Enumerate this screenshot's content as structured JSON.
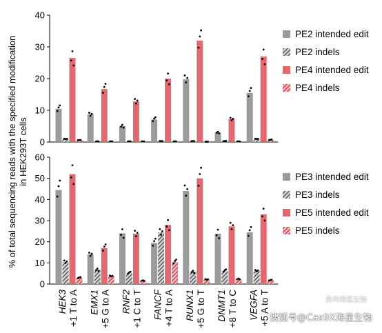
{
  "chart_data": [
    {
      "type": "bar",
      "panel": "top",
      "ylim": [
        0,
        40
      ],
      "yticks": [
        0,
        10,
        20,
        30,
        40
      ],
      "categories": [
        "HEK3 +1 T to A",
        "EMX1 +5 G to A",
        "RNF2 +1 C to T",
        "FANCF +4 T to A",
        "RUNX1 +5 G to T",
        "DNMT1 +8 T to C",
        "VEGFA +5 A to T"
      ],
      "series": [
        {
          "name": "PE2 intended edit",
          "color": "#9b9b9b",
          "pattern": "solid",
          "values": [
            10.5,
            8.7,
            5.0,
            7.1,
            19.8,
            3.0,
            15.5
          ]
        },
        {
          "name": "PE2 indels",
          "color": "#555555",
          "pattern": "hatch",
          "values": [
            1.0,
            0.2,
            0.2,
            0.3,
            0.3,
            0.3,
            1.0
          ]
        },
        {
          "name": "PE4 intended edit",
          "color": "#e06a72",
          "pattern": "solid",
          "values": [
            26.5,
            16.7,
            12.8,
            20.0,
            32.0,
            7.2,
            27.0
          ]
        },
        {
          "name": "PE4 indels",
          "color": "#b8404a",
          "pattern": "hatch",
          "values": [
            0.6,
            0.2,
            0.2,
            0.2,
            0.1,
            0.2,
            0.7
          ]
        }
      ]
    },
    {
      "type": "bar",
      "panel": "bottom",
      "ylim": [
        0,
        60
      ],
      "yticks": [
        0,
        10,
        20,
        30,
        40,
        50,
        60
      ],
      "categories": [
        "HEK3 +1 T to A",
        "EMX1 +5 G to A",
        "RNF2 +1 C to T",
        "FANCF +4 T to A",
        "RUNX1 +5 G to T",
        "DNMT1 +8 T to C",
        "VEGFA +5 A to T"
      ],
      "series": [
        {
          "name": "PE3 intended edit",
          "color": "#9b9b9b",
          "pattern": "solid",
          "values": [
            44.5,
            14.0,
            24.0,
            19.5,
            44.0,
            23.8,
            24.5
          ]
        },
        {
          "name": "PE3 indels",
          "color": "#555555",
          "pattern": "hatch",
          "values": [
            10.5,
            6.8,
            5.3,
            24.5,
            5.8,
            6.3,
            6.3
          ]
        },
        {
          "name": "PE5 intended edit",
          "color": "#e06a72",
          "pattern": "solid",
          "values": [
            52.0,
            17.0,
            23.8,
            28.0,
            50.0,
            27.3,
            33.0
          ]
        },
        {
          "name": "PE5 indels",
          "color": "#b8404a",
          "pattern": "hatch",
          "values": [
            3.0,
            3.8,
            1.6,
            10.5,
            2.2,
            2.4,
            1.8
          ]
        }
      ]
    }
  ],
  "axis": {
    "ylabel_line1": "% of total sequencing reads with the specified modification",
    "ylabel_line2": "in HEK293T cells"
  },
  "categories_display": [
    {
      "gene": "HEK3",
      "edit": "+1 T to A"
    },
    {
      "gene": "EMX1",
      "edit": "+5 G to A"
    },
    {
      "gene": "RNF2",
      "edit": "+1 C to T"
    },
    {
      "gene": "FANCF",
      "edit": "+4 T to A"
    },
    {
      "gene": "RUNX1",
      "edit": "+5 G to T"
    },
    {
      "gene": "DNMT1",
      "edit": "+8 T to C"
    },
    {
      "gene": "VEGFA",
      "edit": "+5 A to T"
    }
  ],
  "watermark": {
    "line1": "搜狐号@Cas9X海星生物",
    "line2": "苏州海星生物"
  }
}
